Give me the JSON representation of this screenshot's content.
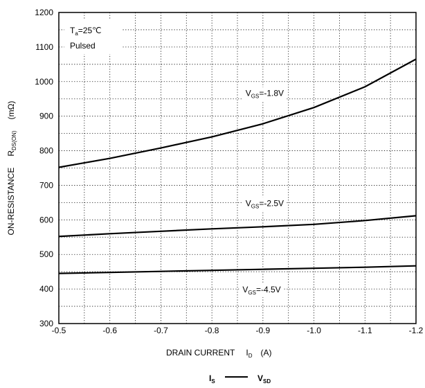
{
  "chart_data": {
    "type": "line",
    "x": [
      -0.5,
      -0.6,
      -0.7,
      -0.8,
      -0.9,
      -1.0,
      -1.1,
      -1.2
    ],
    "series": [
      {
        "label": [
          "V",
          "GS",
          "=-1.8V"
        ],
        "label_at": [
          -0.866,
          958
        ],
        "color": "#000000",
        "values": [
          752,
          778,
          808,
          840,
          878,
          925,
          985,
          1065
        ]
      },
      {
        "label": [
          "V",
          "GS",
          "=-2.5V"
        ],
        "label_at": [
          -0.866,
          640
        ],
        "color": "#000000",
        "values": [
          552,
          560,
          567,
          574,
          580,
          587,
          598,
          612
        ]
      },
      {
        "label": [
          "V",
          "GS",
          "=-4.5V"
        ],
        "label_at": [
          -0.86,
          390
        ],
        "color": "#000000",
        "values": [
          445,
          448,
          451,
          454,
          457,
          460,
          463,
          467
        ]
      }
    ],
    "xlim": [
      -0.5,
      -1.2
    ],
    "xticks": [
      -0.5,
      -0.6,
      -0.7,
      -0.8,
      -0.9,
      {
        "value": -1.0,
        "label": "-1.0"
      },
      -1.1,
      -1.2
    ],
    "ylim": [
      300,
      1200
    ],
    "yticks": [
      300,
      400,
      500,
      600,
      700,
      800,
      900,
      1000,
      1100,
      1200
    ],
    "grid": true,
    "grid_subdivisions": 2,
    "xlabel": [
      "DRAIN CURRENT",
      "I",
      "D",
      "(A)"
    ],
    "ylabel": [
      "ON-RESISTANCE",
      "R",
      "DS(ON)",
      "(mΩ)"
    ],
    "annotation": [
      "T",
      "a",
      "=25℃",
      "Pulsed"
    ],
    "caption": [
      "I",
      "S",
      "V",
      "SD"
    ]
  }
}
